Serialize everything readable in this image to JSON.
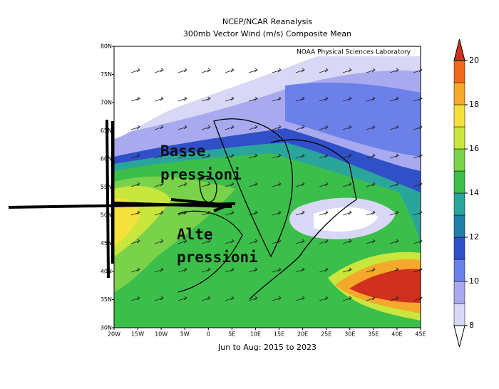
{
  "header": {
    "title": "NCEP/NCAR Reanalysis",
    "subtitle": "300mb Vector Wind (m/s) Composite Mean",
    "credit": "NOAA Physical Sciences Laboratory",
    "footer": "Jun to Aug: 2015 to 2023"
  },
  "map": {
    "lat_labels": [
      "80N",
      "75N",
      "70N",
      "65N",
      "60N",
      "55N",
      "50N",
      "45N",
      "40N",
      "35N",
      "30N"
    ],
    "lon_labels": [
      "20W",
      "15W",
      "10W",
      "5W",
      "0",
      "5E",
      "10E",
      "15E",
      "20E",
      "25E",
      "30E",
      "35E",
      "40E",
      "45E"
    ]
  },
  "colorbar": {
    "lim": [
      8,
      20
    ],
    "ticks": [
      8,
      10,
      12,
      14,
      16,
      18,
      20
    ],
    "colors": [
      "#d8d8f6",
      "#a9a9f0",
      "#6b80e8",
      "#3050c8",
      "#1f80a8",
      "#2aa59c",
      "#3cbf4a",
      "#7ad24a",
      "#c9e63c",
      "#f5e13c",
      "#f5a92a",
      "#f06a1e"
    ],
    "under_color": "#ffffff",
    "over_color": "#d2301e"
  },
  "annotations": [
    "Basse",
    "pressioni",
    "Alte",
    "pressioni"
  ]
}
